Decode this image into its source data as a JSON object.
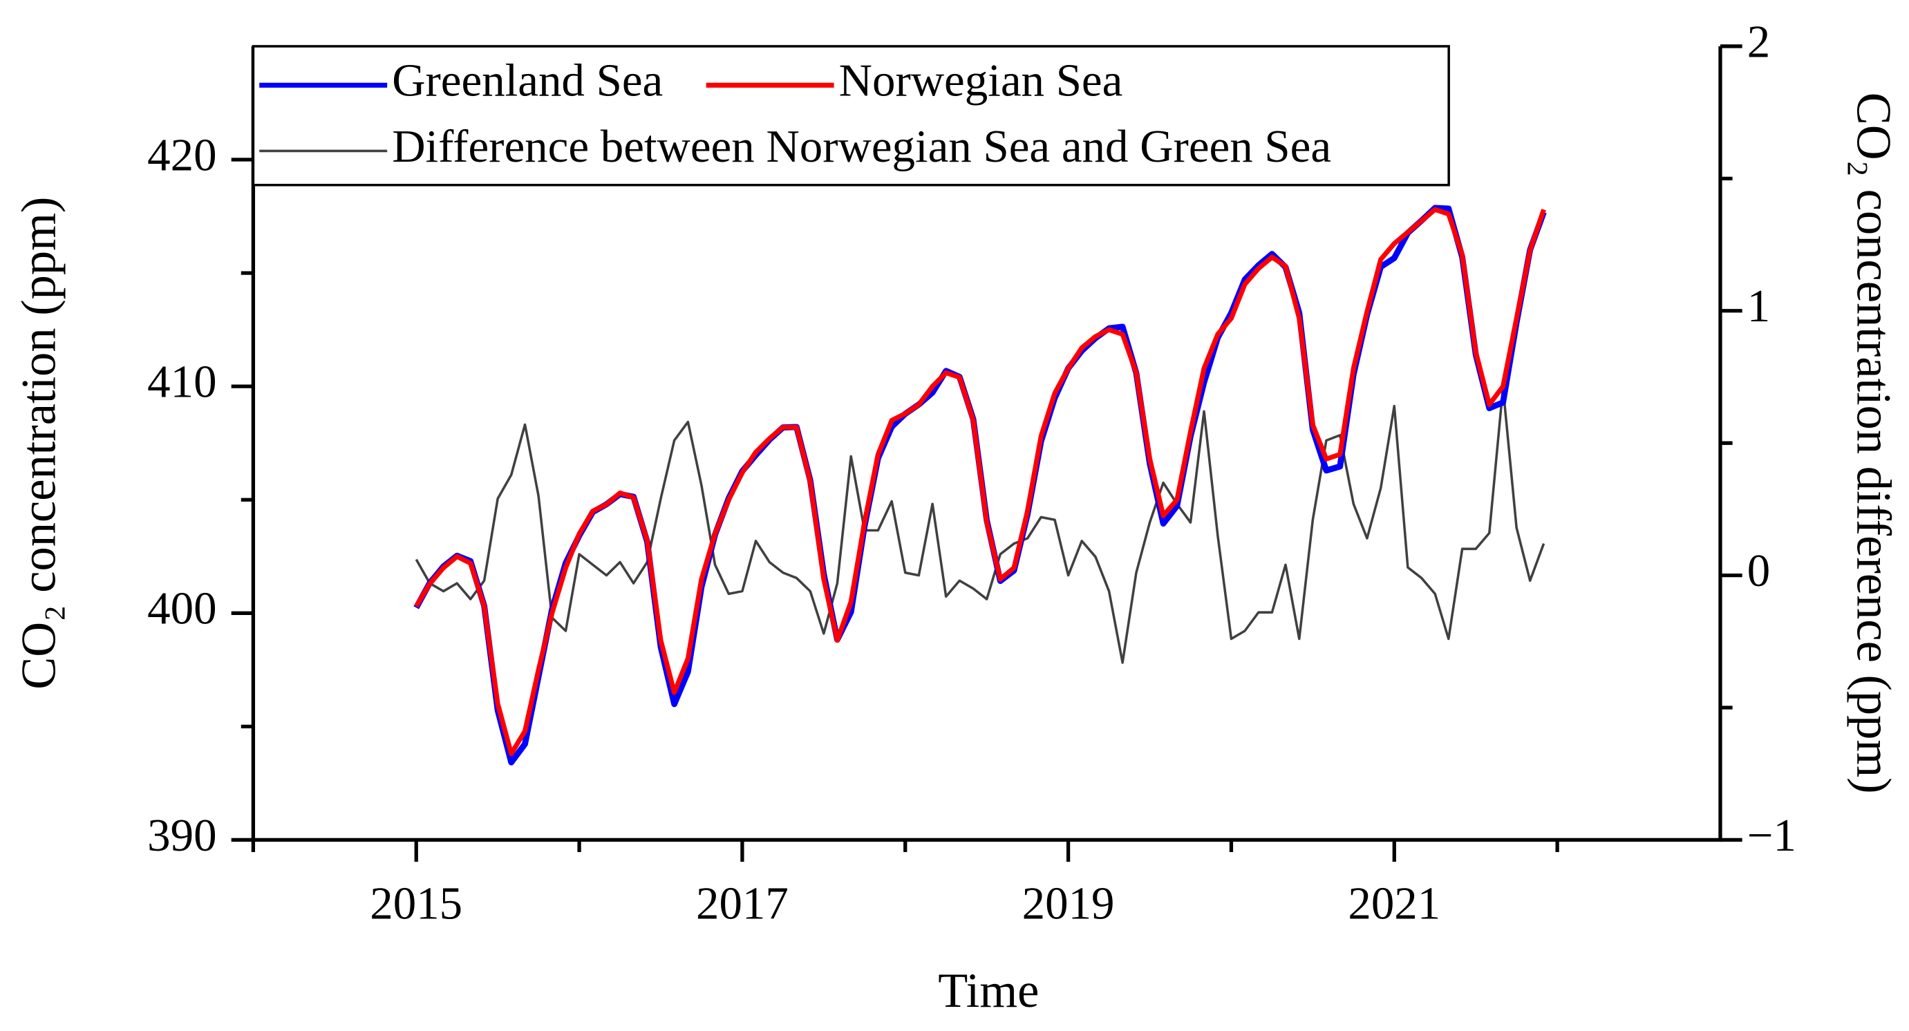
{
  "chart_data": {
    "type": "line",
    "x_label": "Time",
    "y_label": "CO₂ concentration (ppm)",
    "y2_label": "CO₂ concentration difference (ppm)",
    "xlim": [
      2014,
      2023
    ],
    "xticks": [
      2015,
      2017,
      2019,
      2021
    ],
    "xminorticks": [
      2014,
      2016,
      2018,
      2020,
      2022
    ],
    "ylim": [
      390,
      425
    ],
    "yticks": [
      390,
      400,
      410,
      420
    ],
    "yminorticks": [
      395,
      405,
      415
    ],
    "y2lim": [
      -1,
      2
    ],
    "y2ticks": [
      {
        "value": -1,
        "label": "−1"
      },
      0,
      1,
      2
    ],
    "y2minorticks": [
      -0.5,
      0.5,
      1.5
    ],
    "legend": "top-left",
    "x": [
      2015,
      2015.083,
      2015.167,
      2015.25,
      2015.333,
      2015.417,
      2015.5,
      2015.583,
      2015.667,
      2015.75,
      2015.833,
      2015.917,
      2016,
      2016.083,
      2016.167,
      2016.25,
      2016.333,
      2016.417,
      2016.5,
      2016.583,
      2016.667,
      2016.75,
      2016.833,
      2016.917,
      2017,
      2017.083,
      2017.167,
      2017.25,
      2017.333,
      2017.417,
      2017.5,
      2017.583,
      2017.667,
      2017.75,
      2017.833,
      2017.917,
      2018,
      2018.083,
      2018.167,
      2018.25,
      2018.333,
      2018.417,
      2018.5,
      2018.583,
      2018.667,
      2018.75,
      2018.833,
      2018.917,
      2019,
      2019.083,
      2019.167,
      2019.25,
      2019.333,
      2019.417,
      2019.5,
      2019.583,
      2019.667,
      2019.75,
      2019.833,
      2019.917,
      2020,
      2020.083,
      2020.167,
      2020.25,
      2020.333,
      2020.417,
      2020.5,
      2020.583,
      2020.667,
      2020.75,
      2020.833,
      2020.917,
      2021,
      2021.083,
      2021.167,
      2021.25,
      2021.333,
      2021.417,
      2021.5,
      2021.583,
      2021.667,
      2021.75,
      2021.833,
      2021.917
    ],
    "series": [
      {
        "name": "Greenland Sea",
        "color": "#0000ff",
        "axis": "y",
        "values": [
          400.24,
          401.33,
          402.06,
          402.53,
          402.29,
          400.32,
          395.71,
          393.42,
          394.23,
          397.2,
          400.16,
          402.21,
          403.42,
          404.46,
          404.8,
          405.25,
          405.13,
          403.15,
          398.51,
          395.99,
          397.42,
          401.16,
          403.46,
          405.07,
          406.26,
          406.97,
          407.65,
          408.19,
          408.21,
          405.86,
          401.72,
          398.83,
          400.05,
          403.83,
          406.83,
          408.22,
          408.79,
          409.2,
          409.73,
          410.68,
          410.42,
          408.55,
          404.09,
          401.42,
          401.88,
          404.36,
          407.58,
          409.49,
          410.8,
          411.57,
          412.13,
          412.56,
          412.63,
          410.59,
          406.6,
          403.95,
          404.73,
          407.8,
          410.18,
          412.15,
          413.24,
          414.71,
          415.34,
          415.84,
          415.26,
          413.24,
          408.09,
          406.29,
          406.47,
          410.53,
          413.16,
          415.27,
          415.66,
          416.77,
          417.31,
          417.87,
          417.84,
          415.7,
          411.4,
          409.04,
          409.29,
          412.82,
          416.02,
          417.68
        ]
      },
      {
        "name": "Norwegian Sea",
        "color": "#ff0000",
        "axis": "y",
        "values": [
          400.3,
          401.3,
          402.0,
          402.5,
          402.2,
          400.3,
          396.0,
          393.8,
          394.8,
          397.5,
          400.0,
          402.0,
          403.5,
          404.5,
          404.8,
          405.3,
          405.1,
          403.2,
          398.8,
          396.5,
          398.0,
          401.5,
          403.5,
          405.0,
          406.2,
          407.1,
          407.7,
          408.2,
          408.2,
          405.8,
          401.5,
          398.8,
          400.5,
          404.0,
          407.0,
          408.5,
          408.8,
          409.2,
          410.0,
          410.6,
          410.4,
          408.5,
          404.0,
          401.5,
          402.0,
          404.5,
          407.8,
          409.7,
          410.8,
          411.7,
          412.2,
          412.5,
          412.3,
          410.6,
          406.8,
          404.3,
          405.0,
          408.0,
          410.8,
          412.3,
          413.0,
          414.5,
          415.2,
          415.7,
          415.3,
          413.0,
          408.3,
          406.8,
          407.0,
          410.8,
          413.3,
          415.6,
          416.3,
          416.8,
          417.3,
          417.8,
          417.6,
          415.8,
          411.5,
          409.2,
          410.0,
          413.0,
          416.0,
          417.8
        ]
      },
      {
        "name": "Difference between Norwegian Sea and Green Sea",
        "color": "#404040",
        "axis": "y2",
        "values": [
          0.06,
          -0.03,
          -0.06,
          -0.03,
          -0.09,
          -0.02,
          0.29,
          0.38,
          0.57,
          0.3,
          -0.16,
          -0.21,
          0.08,
          0.04,
          0.0,
          0.05,
          -0.03,
          0.05,
          0.29,
          0.51,
          0.58,
          0.34,
          0.04,
          -0.07,
          -0.06,
          0.13,
          0.05,
          0.01,
          -0.01,
          -0.06,
          -0.22,
          -0.03,
          0.45,
          0.17,
          0.17,
          0.28,
          0.01,
          0.0,
          0.27,
          -0.08,
          -0.02,
          -0.05,
          -0.09,
          0.08,
          0.12,
          0.14,
          0.22,
          0.21,
          0.0,
          0.13,
          0.07,
          -0.06,
          -0.33,
          0.01,
          0.2,
          0.35,
          0.27,
          0.2,
          0.62,
          0.15,
          -0.24,
          -0.21,
          -0.14,
          -0.14,
          0.04,
          -0.24,
          0.21,
          0.51,
          0.53,
          0.27,
          0.14,
          0.33,
          0.64,
          0.03,
          -0.01,
          -0.07,
          -0.24,
          0.1,
          0.1,
          0.16,
          0.71,
          0.18,
          -0.02,
          0.12
        ]
      }
    ]
  }
}
